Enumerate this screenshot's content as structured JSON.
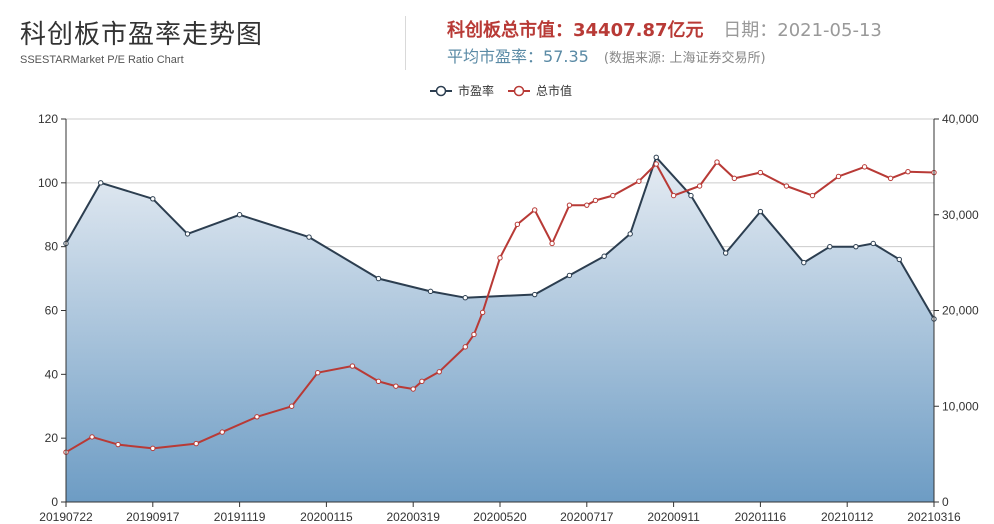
{
  "header": {
    "title": "科创板市盈率走势图",
    "subtitle": "SSESTARMarket P/E Ratio Chart",
    "market_cap_label": "科创板总市值：",
    "market_cap_value": "34407.87亿元",
    "date_label": "日期：",
    "date_value": "2021-05-13",
    "pe_label": "平均市盈率：",
    "pe_value": "57.35",
    "source": "(数据来源: 上海证券交易所)"
  },
  "colors": {
    "pe_line": "#2c3e50",
    "cap_line": "#b83a36",
    "area_top": "#e6ecf3",
    "area_bottom": "#6d9cc4",
    "grid": "#cccccc"
  },
  "chart_data": {
    "type": "line",
    "title": "",
    "legend": {
      "position": "top-center",
      "entries": [
        "市盈率",
        "总市值"
      ]
    },
    "y_left": {
      "ylim": [
        0,
        120
      ],
      "ticks": [
        "0",
        "20",
        "40",
        "60",
        "80",
        "100",
        "120"
      ]
    },
    "y_right": {
      "ylim": [
        0,
        40000
      ],
      "ticks": [
        "0",
        "10,000",
        "20,000",
        "30,000",
        "40,000"
      ]
    },
    "x_tick_labels": [
      "20190722",
      "20190917",
      "20191119",
      "20200115",
      "20200319",
      "20200520",
      "20200717",
      "20200911",
      "20201116",
      "20210112",
      "20210316"
    ],
    "grid": true,
    "series": [
      {
        "name": "市盈率",
        "axis": "left",
        "area": true,
        "x": [
          0.0,
          0.4,
          1.0,
          1.4,
          2.0,
          2.8,
          3.6,
          4.2,
          4.6,
          5.4,
          5.8,
          6.2,
          6.5,
          6.8,
          7.2,
          7.6,
          8.0,
          8.5,
          8.8,
          9.1,
          9.3,
          9.6,
          10.0
        ],
        "values": [
          81,
          100,
          95,
          84,
          90,
          83,
          70,
          66,
          64,
          65,
          71,
          77,
          84,
          108,
          96,
          78,
          91,
          75,
          80,
          80,
          81,
          76,
          57.35
        ]
      },
      {
        "name": "总市值",
        "axis": "right",
        "area": false,
        "x": [
          0.0,
          0.3,
          0.6,
          1.0,
          1.5,
          1.8,
          2.2,
          2.6,
          2.9,
          3.3,
          3.6,
          3.8,
          4.0,
          4.1,
          4.3,
          4.6,
          4.7,
          4.8,
          5.0,
          5.2,
          5.4,
          5.6,
          5.8,
          6.0,
          6.1,
          6.3,
          6.6,
          6.8,
          7.0,
          7.3,
          7.5,
          7.7,
          8.0,
          8.3,
          8.6,
          8.9,
          9.2,
          9.5,
          9.7,
          10.0
        ],
        "values": [
          5200,
          6800,
          6000,
          5600,
          6100,
          7300,
          8900,
          10000,
          13500,
          14200,
          12600,
          12100,
          11800,
          12600,
          13600,
          16200,
          17500,
          19800,
          25500,
          29000,
          30500,
          27000,
          31000,
          31000,
          31500,
          32000,
          33500,
          35300,
          32000,
          33000,
          35500,
          33800,
          34407.87,
          33000,
          32000,
          34000,
          35000,
          33800,
          34500,
          34407.87
        ]
      }
    ]
  }
}
